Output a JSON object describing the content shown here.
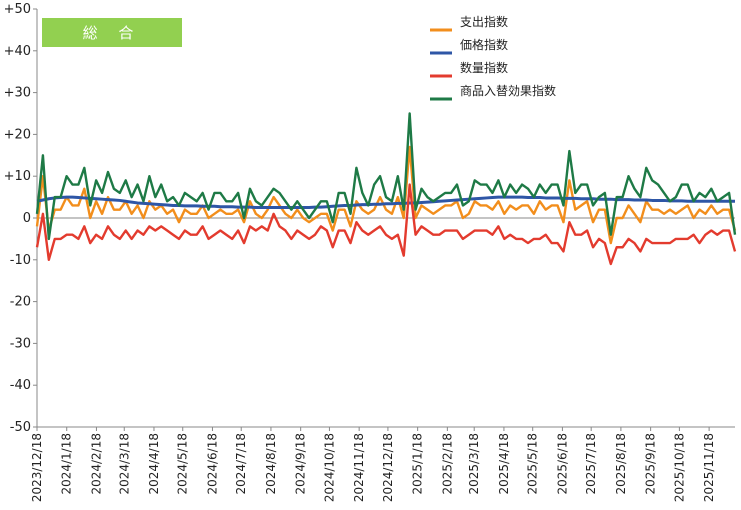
{
  "chart_data": {
    "type": "line",
    "title": "総 合",
    "title_box_color": "#92D050",
    "ylim": [
      -50,
      50
    ],
    "ytick_labels": [
      "+50",
      "+40",
      "+30",
      "+20",
      "+10",
      "0",
      "-10",
      "-20",
      "-30",
      "-40",
      "-50"
    ],
    "ytick_values": [
      50,
      40,
      30,
      20,
      10,
      0,
      -10,
      -20,
      -30,
      -40,
      -50
    ],
    "x_start": "2023-12-18",
    "x_end": "2025-12-15",
    "xtick_labels": [
      "2023/12/18",
      "2024/1/18",
      "2024/2/18",
      "2024/3/18",
      "2024/4/18",
      "2024/5/18",
      "2024/6/18",
      "2024/7/18",
      "2024/8/18",
      "2024/9/18",
      "2024/10/18",
      "2024/11/18",
      "2024/12/18",
      "2025/1/18",
      "2025/2/18",
      "2025/3/18",
      "2025/4/18",
      "2025/5/18",
      "2025/6/18",
      "2025/7/18",
      "2025/8/18",
      "2025/9/18",
      "2025/10/18",
      "2025/11/18"
    ],
    "legend_position": "top-right",
    "grid": false,
    "series": [
      {
        "name": "支出指数",
        "color": "#F28E1C",
        "values": [
          -2,
          10,
          -3,
          2,
          2,
          5,
          3,
          3,
          7,
          0,
          4,
          1,
          5,
          2,
          2,
          4,
          1,
          3,
          0,
          4,
          2,
          3,
          1,
          2,
          -1,
          2,
          1,
          1,
          3,
          0,
          1,
          2,
          1,
          1,
          2,
          -1,
          4,
          1,
          0,
          2,
          5,
          3,
          1,
          0,
          2,
          0,
          -1,
          0,
          1,
          1,
          -3,
          2,
          2,
          -2,
          4,
          2,
          1,
          2,
          5,
          2,
          1,
          5,
          0,
          17,
          0,
          3,
          2,
          1,
          2,
          3,
          3,
          4,
          0,
          1,
          4,
          3,
          3,
          2,
          4,
          1,
          3,
          2,
          3,
          3,
          1,
          4,
          2,
          3,
          3,
          -1,
          9,
          2,
          3,
          4,
          -1,
          2,
          2,
          -6,
          0,
          0,
          3,
          1,
          -1,
          4,
          2,
          2,
          1,
          2,
          1,
          2,
          3,
          0,
          2,
          1,
          3,
          1,
          2,
          2,
          -3
        ]
      },
      {
        "name": "価格指数",
        "color": "#2E56A6",
        "values": [
          4,
          4.3,
          4.6,
          4.8,
          4.9,
          5.0,
          5.0,
          4.9,
          4.8,
          4.7,
          4.6,
          4.5,
          4.4,
          4.3,
          4.2,
          4.0,
          3.8,
          3.6,
          3.5,
          3.4,
          3.3,
          3.2,
          3.1,
          3.0,
          3.0,
          2.9,
          2.9,
          2.9,
          2.8,
          2.8,
          2.8,
          2.7,
          2.7,
          2.7,
          2.6,
          2.6,
          2.6,
          2.5,
          2.5,
          2.5,
          2.5,
          2.5,
          2.5,
          2.5,
          2.5,
          2.5,
          2.5,
          2.6,
          2.6,
          2.7,
          2.8,
          2.9,
          3.0,
          3.0,
          3.1,
          3.2,
          3.2,
          3.3,
          3.3,
          3.4,
          3.4,
          3.5,
          3.5,
          3.6,
          3.6,
          3.7,
          3.8,
          3.9,
          4.0,
          4.1,
          4.2,
          4.3,
          4.4,
          4.5,
          4.6,
          4.7,
          4.8,
          4.9,
          5.0,
          5.0,
          5.0,
          5.0,
          5.0,
          4.9,
          4.9,
          4.9,
          4.8,
          4.8,
          4.8,
          4.7,
          4.7,
          4.7,
          4.6,
          4.6,
          4.6,
          4.5,
          4.5,
          4.5,
          4.4,
          4.4,
          4.4,
          4.3,
          4.3,
          4.3,
          4.2,
          4.2,
          4.2,
          4.1,
          4.1,
          4.1,
          4.0,
          4.0,
          4.0,
          4.0,
          4.0,
          4.0,
          4.0,
          4.0,
          4.0
        ]
      },
      {
        "name": "数量指数",
        "color": "#E33B2E",
        "values": [
          -7,
          1,
          -10,
          -5,
          -5,
          -4,
          -4,
          -5,
          -2,
          -6,
          -4,
          -5,
          -2,
          -4,
          -5,
          -3,
          -5,
          -3,
          -4,
          -2,
          -3,
          -2,
          -3,
          -4,
          -5,
          -3,
          -4,
          -4,
          -2,
          -5,
          -4,
          -3,
          -4,
          -5,
          -3,
          -6,
          -2,
          -3,
          -2,
          -3,
          1,
          -2,
          -3,
          -5,
          -3,
          -4,
          -5,
          -4,
          -2,
          -3,
          -7,
          -3,
          -3,
          -6,
          -1,
          -3,
          -4,
          -3,
          -2,
          -4,
          -5,
          -4,
          -9,
          8,
          -4,
          -2,
          -3,
          -4,
          -4,
          -3,
          -3,
          -3,
          -5,
          -4,
          -3,
          -3,
          -3,
          -4,
          -2,
          -5,
          -4,
          -5,
          -5,
          -6,
          -5,
          -5,
          -4,
          -6,
          -6,
          -8,
          -1,
          -4,
          -4,
          -3,
          -7,
          -5,
          -6,
          -11,
          -7,
          -7,
          -5,
          -6,
          -8,
          -5,
          -6,
          -6,
          -6,
          -6,
          -5,
          -5,
          -5,
          -4,
          -6,
          -4,
          -3,
          -4,
          -3,
          -3,
          -8
        ]
      },
      {
        "name": "商品入替効果指数",
        "color": "#1E7A46",
        "values": [
          1,
          15,
          -5,
          5,
          5,
          10,
          8,
          8,
          12,
          3,
          9,
          6,
          11,
          7,
          6,
          9,
          5,
          8,
          4,
          10,
          5,
          8,
          4,
          5,
          3,
          6,
          5,
          4,
          6,
          2,
          6,
          6,
          4,
          4,
          6,
          0,
          7,
          4,
          3,
          5,
          7,
          6,
          4,
          2,
          4,
          2,
          0,
          2,
          4,
          4,
          -1,
          6,
          6,
          1,
          12,
          6,
          3,
          8,
          10,
          5,
          4,
          10,
          2,
          25,
          2,
          7,
          5,
          4,
          5,
          6,
          6,
          8,
          3,
          4,
          9,
          8,
          8,
          6,
          9,
          5,
          8,
          6,
          8,
          7,
          5,
          8,
          6,
          8,
          8,
          3,
          16,
          6,
          8,
          8,
          3,
          5,
          6,
          -4,
          5,
          5,
          10,
          7,
          5,
          12,
          9,
          8,
          6,
          4,
          5,
          8,
          8,
          4,
          6,
          5,
          7,
          4,
          5,
          6,
          -4
        ]
      }
    ]
  }
}
